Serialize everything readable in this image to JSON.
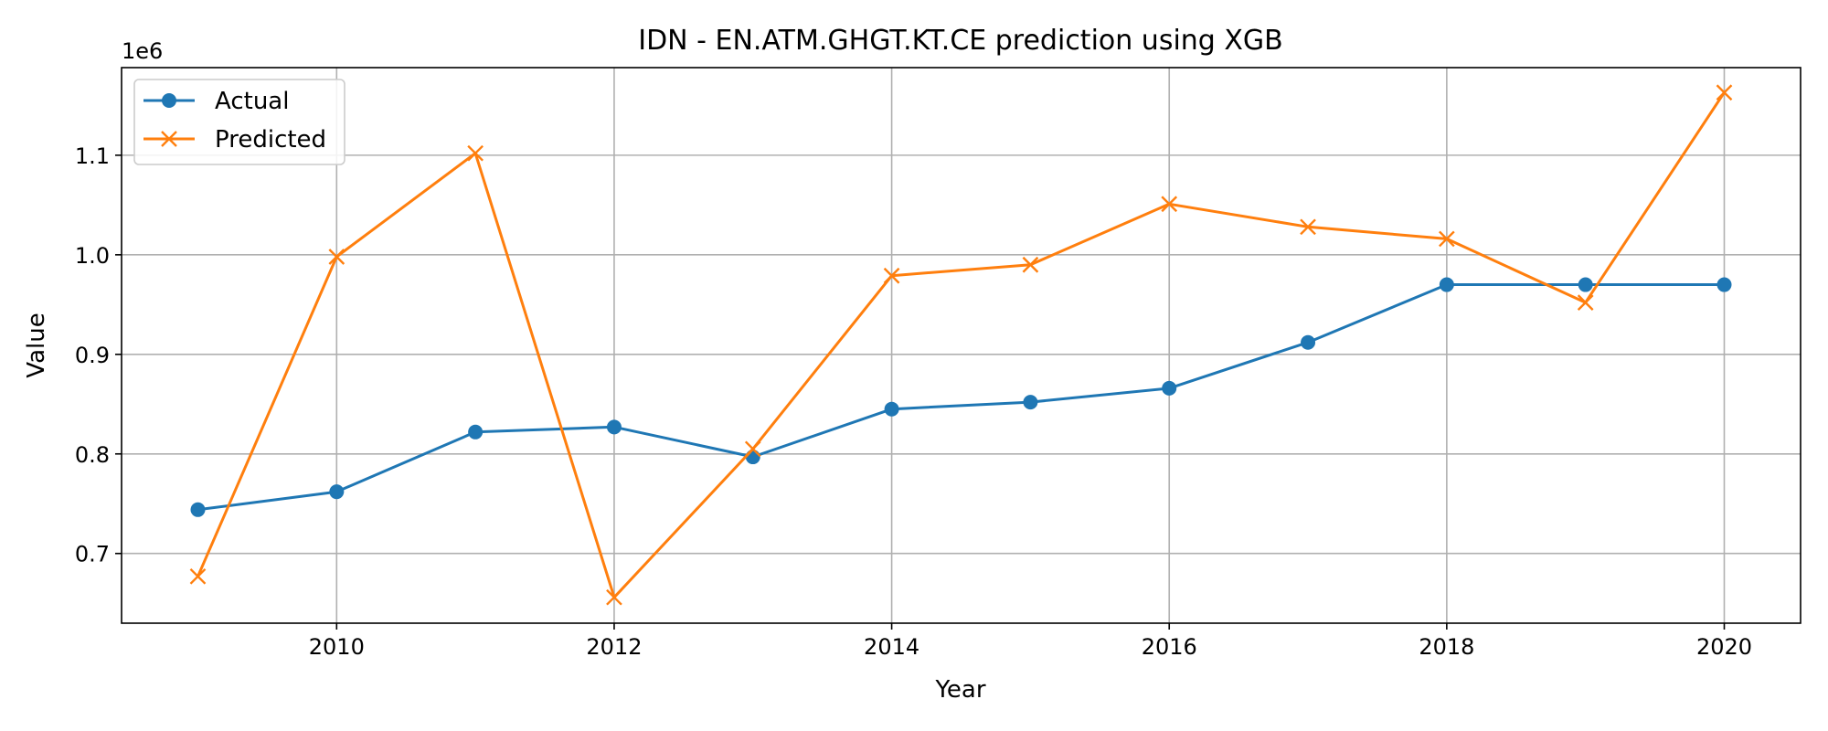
{
  "chart_data": {
    "type": "line",
    "title": "IDN - EN.ATM.GHGT.KT.CE prediction using XGB",
    "xlabel": "Year",
    "ylabel": "Value",
    "y_offset_label": "1e6",
    "x": [
      2009,
      2010,
      2011,
      2012,
      2013,
      2014,
      2015,
      2016,
      2017,
      2018,
      2019,
      2020
    ],
    "xticks": [
      2010,
      2012,
      2014,
      2016,
      2018,
      2020
    ],
    "yticks": [
      0.7,
      0.8,
      0.9,
      1.0,
      1.1
    ],
    "ytick_labels": [
      "0.7",
      "0.8",
      "0.9",
      "1.0",
      "1.1"
    ],
    "xlim": [
      2008.45,
      2020.55
    ],
    "ylim": [
      0.63,
      1.188
    ],
    "y_unit_multiplier": 1000000,
    "grid": true,
    "legend_position": "upper left",
    "series": [
      {
        "name": "Actual",
        "color": "#1f77b4",
        "marker": "circle",
        "values": [
          0.744,
          0.762,
          0.822,
          0.827,
          0.797,
          0.845,
          0.852,
          0.866,
          0.912,
          0.97,
          0.97,
          0.97
        ]
      },
      {
        "name": "Predicted",
        "color": "#ff7f0e",
        "marker": "x",
        "values": [
          0.677,
          0.998,
          1.102,
          0.656,
          0.805,
          0.979,
          0.99,
          1.051,
          1.028,
          1.016,
          0.952,
          1.163
        ]
      }
    ]
  }
}
